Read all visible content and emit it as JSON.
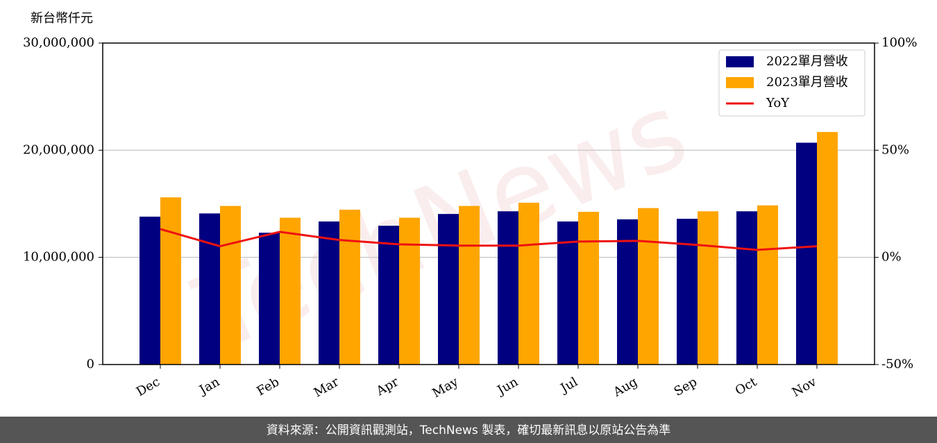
{
  "chart_data": {
    "type": "bar",
    "y_label": "新台幣仟元",
    "watermark": "TechNews",
    "footer": "資料來源：公開資訊觀測站，TechNews 製表，確切最新訊息以原站公告為準",
    "categories": [
      "Dec",
      "Jan",
      "Feb",
      "Mar",
      "Apr",
      "May",
      "Jun",
      "Jul",
      "Aug",
      "Sep",
      "Oct",
      "Nov"
    ],
    "series": [
      {
        "name": "2022單月營收",
        "type": "bar",
        "color": "#000080",
        "values": [
          13800000,
          14100000,
          12300000,
          13350000,
          12950000,
          14050000,
          14300000,
          13350000,
          13550000,
          13600000,
          14300000,
          20700000
        ]
      },
      {
        "name": "2023單月營收",
        "type": "bar",
        "color": "#ffa500",
        "values": [
          15600000,
          14800000,
          13700000,
          14450000,
          13700000,
          14800000,
          15100000,
          14250000,
          14600000,
          14300000,
          14850000,
          21700000
        ]
      },
      {
        "name": "YoY",
        "type": "line",
        "color": "#ee1111",
        "axis": "y2",
        "values": [
          13.2,
          5.2,
          11.9,
          8.1,
          6.1,
          5.5,
          5.5,
          7.4,
          7.7,
          5.8,
          3.5,
          5.2
        ]
      }
    ],
    "ylim": [
      0,
      30000000
    ],
    "yticks": [
      0,
      {
        "value": 10000000,
        "label": "10,000,000"
      },
      {
        "value": 20000000,
        "label": "20,000,000"
      },
      {
        "value": 30000000,
        "label": "30,000,000"
      }
    ],
    "y2lim": [
      -50,
      100
    ],
    "y2ticks": [
      {
        "value": -50,
        "label": "-50%"
      },
      {
        "value": 0,
        "label": "0%"
      },
      {
        "value": 50,
        "label": "50%"
      },
      {
        "value": 100,
        "label": "100%"
      }
    ],
    "grid": true,
    "legend": "upper right"
  }
}
